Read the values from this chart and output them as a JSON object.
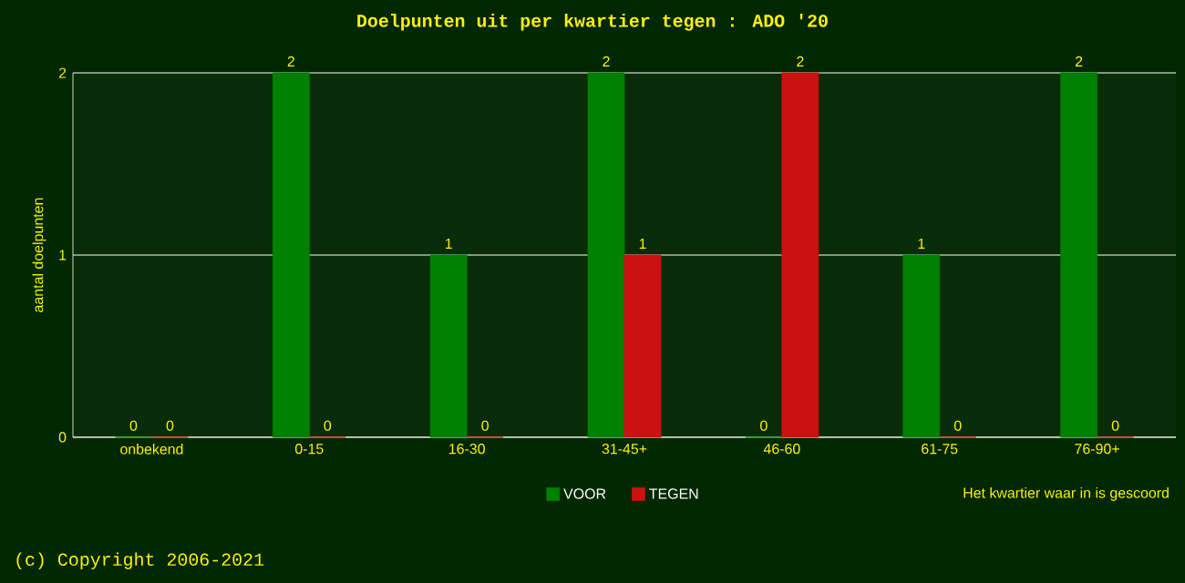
{
  "chart_data": {
    "type": "bar",
    "title": "Doelpunten uit per kwartier tegen : ADO '20",
    "categories": [
      "onbekend",
      "0-15",
      "16-30",
      "31-45+",
      "46-60",
      "61-75",
      "76-90+"
    ],
    "series": [
      {
        "name": "VOOR",
        "color": "#008000",
        "values": [
          0,
          2,
          1,
          2,
          0,
          1,
          2
        ]
      },
      {
        "name": "TEGEN",
        "color": "#cc1111",
        "values": [
          0,
          0,
          0,
          1,
          2,
          0,
          0
        ]
      }
    ],
    "ylabel": "aantal doelpunten",
    "xlabel": "Het kwartier waar in is gescoord",
    "ylim": [
      0,
      2
    ],
    "yticks": [
      0,
      1,
      2
    ],
    "grid": "y",
    "legend": "bottom",
    "data_labels": true,
    "annotations": [
      "(c) Copyright 2006-2021"
    ]
  }
}
